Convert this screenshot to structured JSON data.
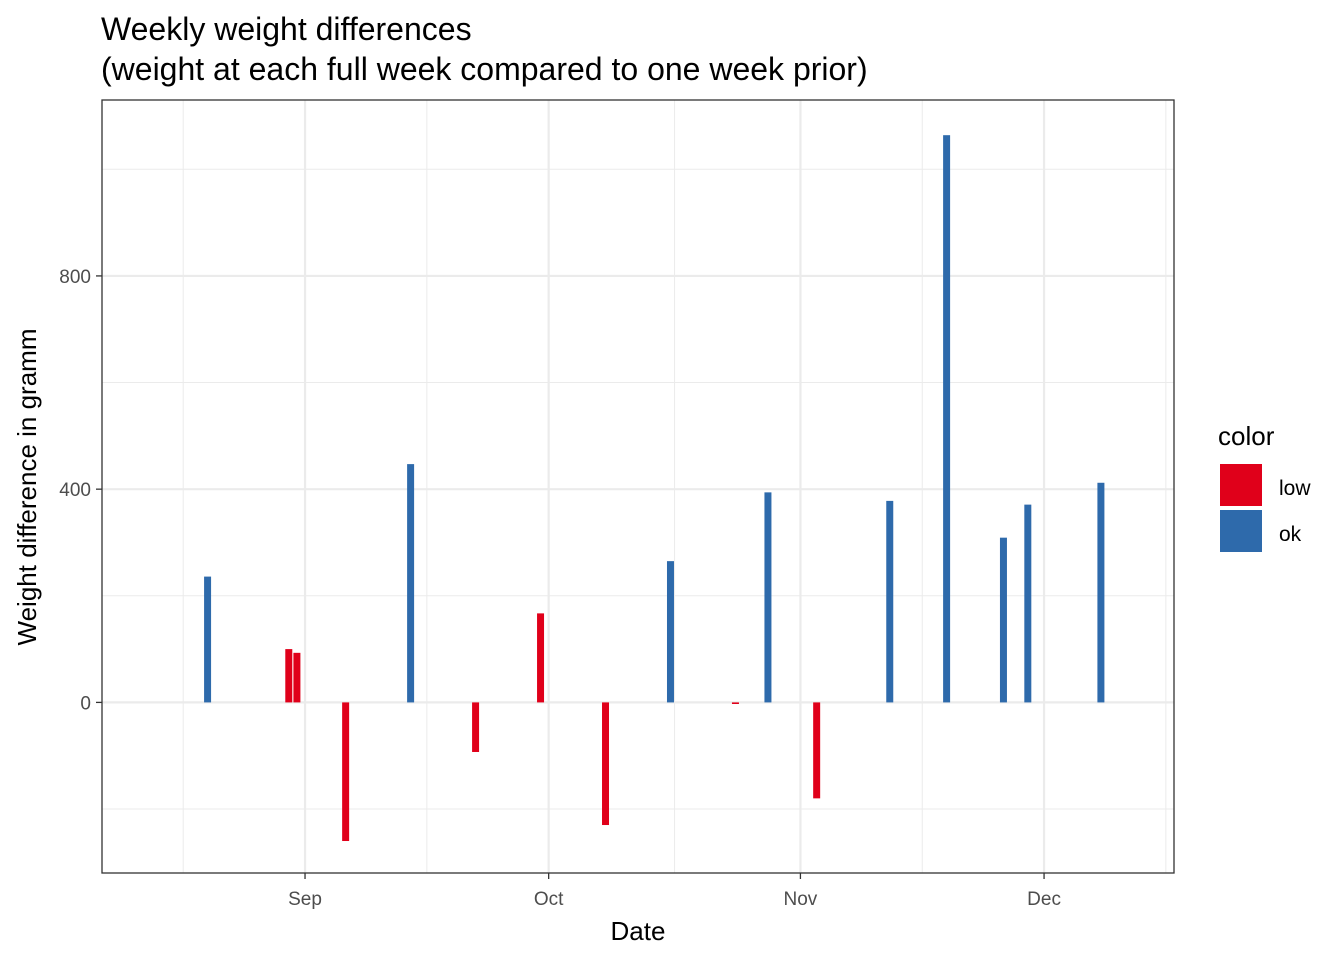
{
  "chart_data": {
    "type": "bar",
    "title": "Weekly weight differences",
    "subtitle": "(weight at each full week compared to one week prior)",
    "xlabel": "Date",
    "ylabel": "Weight difference in gramm",
    "x_ticks": [
      {
        "date": "2021-09-01",
        "label": "Sep"
      },
      {
        "date": "2021-10-01",
        "label": "Oct"
      },
      {
        "date": "2021-11-01",
        "label": "Nov"
      },
      {
        "date": "2021-12-01",
        "label": "Dec"
      }
    ],
    "y_ticks": [
      0,
      400,
      800
    ],
    "xlim": [
      "2021-08-07",
      "2021-12-17"
    ],
    "ylim": [
      -320,
      1130
    ],
    "grid": true,
    "legend": {
      "title": "color",
      "position": "right",
      "entries": [
        {
          "key": "low",
          "label": "low",
          "color": "#E0001A"
        },
        {
          "key": "ok",
          "label": "ok",
          "color": "#2E6AAB"
        }
      ]
    },
    "bars": [
      {
        "date": "2021-08-20",
        "value": 236,
        "color": "ok"
      },
      {
        "date": "2021-08-30",
        "value": 100,
        "color": "low"
      },
      {
        "date": "2021-08-31",
        "value": 93,
        "color": "low"
      },
      {
        "date": "2021-09-06",
        "value": -260,
        "color": "low"
      },
      {
        "date": "2021-09-14",
        "value": 447,
        "color": "ok"
      },
      {
        "date": "2021-09-22",
        "value": -93,
        "color": "low"
      },
      {
        "date": "2021-09-30",
        "value": 167,
        "color": "low"
      },
      {
        "date": "2021-10-08",
        "value": -230,
        "color": "low"
      },
      {
        "date": "2021-10-16",
        "value": 265,
        "color": "ok"
      },
      {
        "date": "2021-10-24",
        "value": -3,
        "color": "low"
      },
      {
        "date": "2021-10-28",
        "value": 394,
        "color": "ok"
      },
      {
        "date": "2021-11-03",
        "value": -180,
        "color": "low"
      },
      {
        "date": "2021-11-12",
        "value": 378,
        "color": "ok"
      },
      {
        "date": "2021-11-19",
        "value": 1064,
        "color": "ok"
      },
      {
        "date": "2021-11-26",
        "value": 309,
        "color": "ok"
      },
      {
        "date": "2021-11-29",
        "value": 371,
        "color": "ok"
      },
      {
        "date": "2021-12-08",
        "value": 412,
        "color": "ok"
      }
    ]
  }
}
